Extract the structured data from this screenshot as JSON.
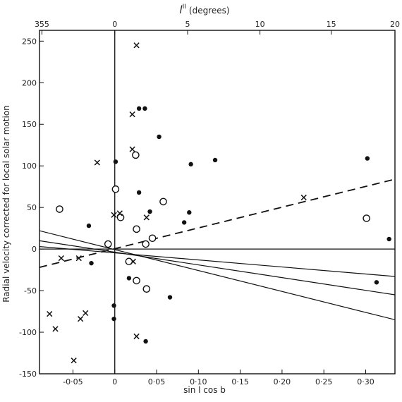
{
  "chart_data": {
    "type": "scatter",
    "xlabel": "sin l cos b",
    "ylabel": "Radial velocity corrected for local solar motion",
    "top_axis_label": "l^II (degrees)",
    "top_axis_label_main": "l",
    "top_axis_label_sup": "II",
    "top_axis_label_unit": "(degrees)",
    "xlim": [
      -0.09,
      0.335
    ],
    "ylim": [
      -150,
      263
    ],
    "grid": false,
    "bottom_ticks": [
      {
        "value": -0.05,
        "label": "-0·05"
      },
      {
        "value": 0,
        "label": "0"
      },
      {
        "value": 0.05,
        "label": "0·05"
      },
      {
        "value": 0.1,
        "label": "0·10"
      },
      {
        "value": 0.15,
        "label": "0·15"
      },
      {
        "value": 0.2,
        "label": "0·20"
      },
      {
        "value": 0.25,
        "label": "0·25"
      },
      {
        "value": 0.3,
        "label": "0·30"
      }
    ],
    "y_ticks": [
      {
        "value": -150,
        "label": "-150"
      },
      {
        "value": -100,
        "label": "-100"
      },
      {
        "value": -50,
        "label": "-50"
      },
      {
        "value": 0,
        "label": "0"
      },
      {
        "value": 50,
        "label": "50"
      },
      {
        "value": 100,
        "label": "100"
      },
      {
        "value": 150,
        "label": "150"
      },
      {
        "value": 200,
        "label": "200"
      },
      {
        "value": 250,
        "label": "250"
      }
    ],
    "top_ticks": [
      {
        "value": -0.0871,
        "label": "355"
      },
      {
        "value": 0,
        "label": "0"
      },
      {
        "value": 0.0871,
        "label": "5"
      },
      {
        "value": 0.1736,
        "label": "10"
      },
      {
        "value": 0.2588,
        "label": "15"
      },
      {
        "value": 0.342,
        "label": "20"
      }
    ],
    "series": [
      {
        "marker": "filled-circle",
        "points": [
          [
            0.029,
            169
          ],
          [
            0.036,
            169
          ],
          [
            0.001,
            105
          ],
          [
            0.029,
            68
          ],
          [
            0.053,
            135
          ],
          [
            -0.031,
            28
          ],
          [
            0.091,
            102
          ],
          [
            0.12,
            107
          ],
          [
            0.302,
            109
          ],
          [
            0.083,
            32
          ],
          [
            0.089,
            44
          ],
          [
            0.017,
            -35
          ],
          [
            0.042,
            45
          ],
          [
            -0.028,
            -17
          ],
          [
            0.066,
            -58
          ],
          [
            0.037,
            -111
          ],
          [
            0.313,
            -40
          ],
          [
            0.328,
            12
          ],
          [
            -0.001,
            -68
          ],
          [
            -0.001,
            -84
          ]
        ]
      },
      {
        "marker": "open-circle",
        "points": [
          [
            -0.066,
            48
          ],
          [
            0.025,
            113
          ],
          [
            0.001,
            72
          ],
          [
            0.007,
            38
          ],
          [
            -0.008,
            6
          ],
          [
            0.058,
            57
          ],
          [
            0.017,
            -15
          ],
          [
            0.026,
            24
          ],
          [
            0.045,
            13
          ],
          [
            0.037,
            6
          ],
          [
            0.026,
            -38
          ],
          [
            0.038,
            -48
          ],
          [
            0.301,
            37
          ]
        ]
      },
      {
        "marker": "cross",
        "points": [
          [
            0.026,
            245
          ],
          [
            0.021,
            162
          ],
          [
            0.021,
            120
          ],
          [
            -0.021,
            104
          ],
          [
            -0.001,
            41
          ],
          [
            0.006,
            43
          ],
          [
            0.038,
            38
          ],
          [
            0.226,
            62
          ],
          [
            -0.064,
            -11
          ],
          [
            -0.043,
            -11
          ],
          [
            0.022,
            -15
          ],
          [
            -0.078,
            -78
          ],
          [
            -0.071,
            -96
          ],
          [
            -0.041,
            -84
          ],
          [
            -0.035,
            -77
          ],
          [
            0.026,
            -105
          ],
          [
            -0.049,
            -134
          ]
        ]
      }
    ],
    "lines": [
      {
        "style": "dashed",
        "points": [
          [
            -0.09,
            -22
          ],
          [
            0.335,
            84
          ]
        ]
      },
      {
        "style": "solid",
        "points": [
          [
            -0.09,
            22
          ],
          [
            0.335,
            -85
          ]
        ]
      },
      {
        "style": "solid",
        "points": [
          [
            -0.09,
            10
          ],
          [
            0.335,
            -55
          ]
        ]
      },
      {
        "style": "solid",
        "points": [
          [
            -0.09,
            3
          ],
          [
            0.335,
            -33
          ]
        ]
      }
    ]
  }
}
